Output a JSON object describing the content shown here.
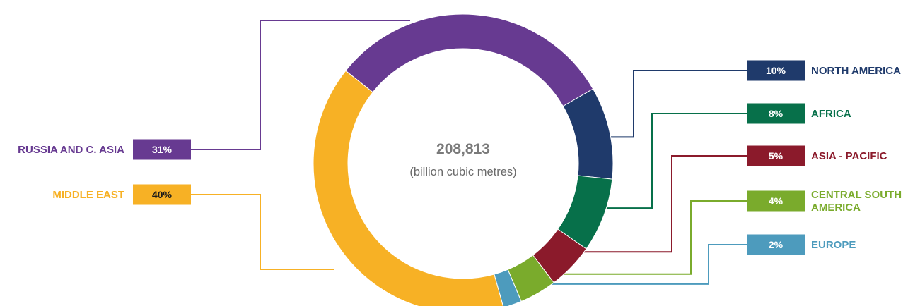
{
  "chart_data": {
    "type": "pie",
    "variant": "donut",
    "center_value": "208,813",
    "center_unit": "(billion cubic metres)",
    "slices": [
      {
        "name": "NORTH AMERICA",
        "name_lines": [
          "NORTH AMERICA"
        ],
        "value": 10,
        "pct_label": "10%",
        "color": "#1f3a6b",
        "text_color": "#ffffff",
        "side": "right"
      },
      {
        "name": "AFRICA",
        "name_lines": [
          "AFRICA"
        ],
        "value": 8,
        "pct_label": "8%",
        "color": "#07704a",
        "text_color": "#ffffff",
        "side": "right"
      },
      {
        "name": "ASIA - PACIFIC",
        "name_lines": [
          "ASIA - PACIFIC"
        ],
        "value": 5,
        "pct_label": "5%",
        "color": "#8b1a2b",
        "text_color": "#ffffff",
        "side": "right"
      },
      {
        "name": "CENTRAL SOUTH AMERICA",
        "name_lines": [
          "CENTRAL SOUTH",
          "AMERICA"
        ],
        "value": 4,
        "pct_label": "4%",
        "color": "#7aab2c",
        "text_color": "#ffffff",
        "side": "right"
      },
      {
        "name": "EUROPE",
        "name_lines": [
          "EUROPE"
        ],
        "value": 2,
        "pct_label": "2%",
        "color": "#4d9bbd",
        "text_color": "#ffffff",
        "side": "right"
      },
      {
        "name": "MIDDLE EAST",
        "name_lines": [
          "MIDDLE EAST"
        ],
        "value": 40,
        "pct_label": "40%",
        "color": "#f7b125",
        "text_color": "#1a1a1a",
        "side": "left"
      },
      {
        "name": "RUSSIA AND C. ASIA",
        "name_lines": [
          "RUSSIA AND C. ASIA"
        ],
        "value": 31,
        "pct_label": "31%",
        "color": "#673a91",
        "text_color": "#ffffff",
        "side": "left"
      }
    ]
  },
  "center_value_color": "#7a7a7a",
  "center_unit_color": "#6a6a6a"
}
